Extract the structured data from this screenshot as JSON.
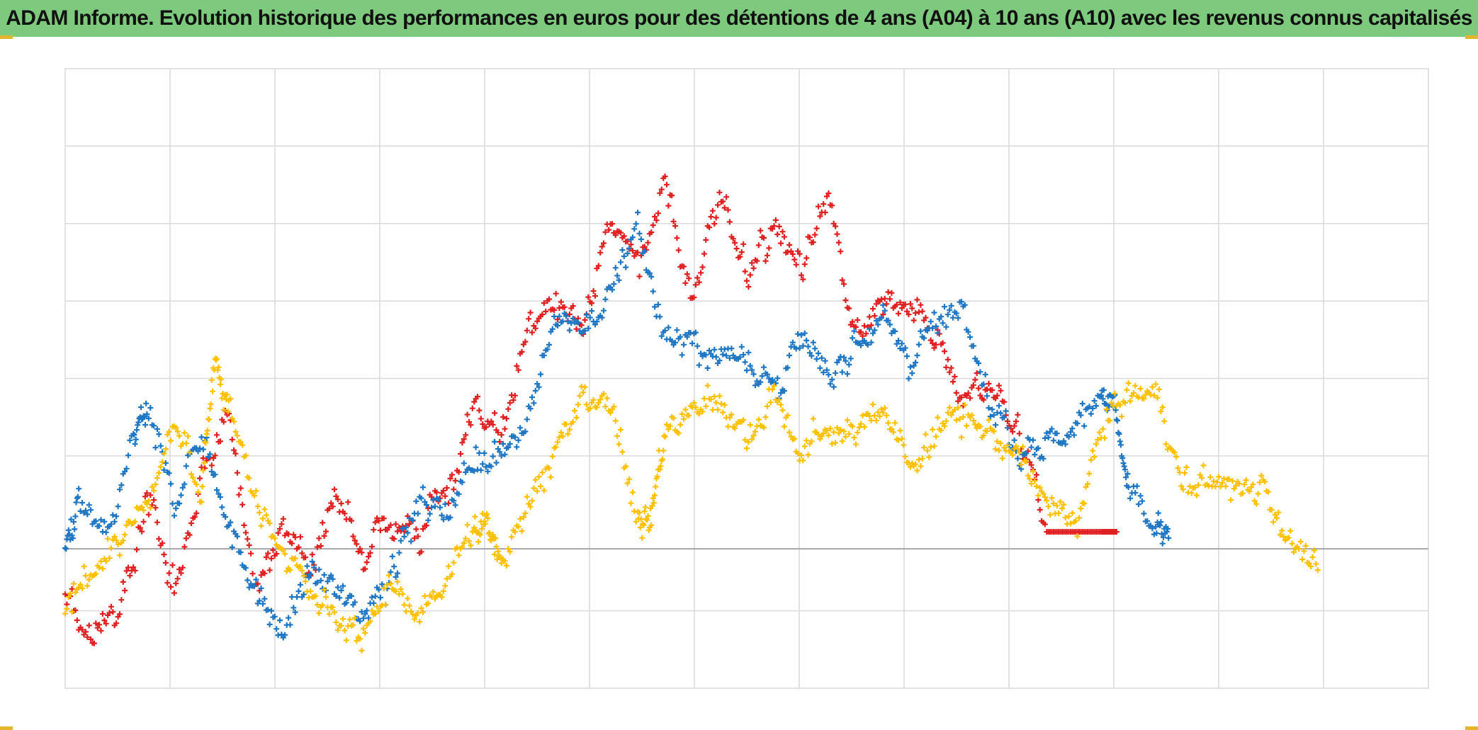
{
  "title": "ADAM Informe. Evolution historique des performances en euros pour des détentions de 4 ans (A04) à 10 ans (A10) avec les revenus connus capitalisés",
  "colors": {
    "title_background": "#7dc97d",
    "grid": "#d9d9d9",
    "zero_line": "#a6a6a6",
    "corner_marks": "#e3b52a"
  },
  "chart_data": {
    "type": "scatter",
    "marker": "plus",
    "title": "ADAM Informe. Evolution historique des performances en euros pour des détentions de 4 ans (A04) à 10 ans (A10) avec les revenus connus capitalisés",
    "xlabel": "",
    "ylabel": "",
    "grid": true,
    "legend": "none",
    "x_grid_divisions": 13,
    "ylim": [
      -0.9,
      3.1
    ],
    "y_gridlines": [
      -0.4,
      0.6,
      1.1,
      1.6,
      2.1,
      2.6
    ],
    "zero_line": 0,
    "points_per_anchor": 16,
    "series": [
      {
        "color": "#e02020",
        "x_anchors": [
          0,
          2,
          4,
          6,
          8,
          10,
          12,
          14,
          16,
          18,
          20,
          22,
          24,
          26,
          28,
          30,
          32,
          34,
          36,
          38,
          40,
          42,
          44,
          46,
          48,
          50,
          52,
          54,
          56,
          58,
          60,
          62,
          64,
          66,
          68,
          70,
          72,
          74,
          76,
          77.2
        ],
        "y_anchors": [
          -0.3,
          -0.6,
          -0.35,
          0.3,
          -0.25,
          0.5,
          0.85,
          -0.3,
          0.2,
          -0.1,
          0.3,
          -0.05,
          0.2,
          0.05,
          0.4,
          0.85,
          0.7,
          1.45,
          1.6,
          1.45,
          2.1,
          1.9,
          2.35,
          1.6,
          2.2,
          1.85,
          2.05,
          1.8,
          2.3,
          1.4,
          1.55,
          1.6,
          1.35,
          0.95,
          1.05,
          0.75,
          0.11,
          0.11,
          0.11,
          0.11
        ],
        "constant_after_x": 72,
        "constant_value": 0.11
      },
      {
        "color": "#1f77c4",
        "x_anchors": [
          0,
          1,
          3,
          5,
          6,
          8,
          10,
          12,
          14,
          16,
          18,
          20,
          22,
          24,
          26,
          28,
          30,
          32,
          34,
          36,
          38,
          40,
          42,
          44,
          46,
          48,
          50,
          52,
          54,
          56,
          58,
          60,
          62,
          64,
          66,
          68,
          70,
          72,
          74,
          76,
          77,
          78,
          80,
          81
        ],
        "y_anchors": [
          0,
          0.3,
          0,
          0.7,
          0.9,
          0.3,
          0.75,
          0.2,
          -0.3,
          -0.55,
          -0.15,
          -0.3,
          -0.4,
          -0.1,
          0.3,
          0.25,
          0.55,
          0.65,
          0.85,
          1.5,
          1.45,
          1.6,
          2.1,
          1.35,
          1.3,
          1.25,
          1.3,
          1.0,
          1.3,
          1.1,
          1.35,
          1.5,
          1.25,
          1.45,
          1.65,
          0.9,
          0.65,
          0.7,
          0.75,
          1.05,
          0.9,
          0.35,
          0.1,
          0.1
        ]
      },
      {
        "color": "#ffc000",
        "x_anchors": [
          0,
          2,
          4,
          6,
          8,
          10,
          11,
          12,
          14,
          16,
          18,
          20,
          22,
          24,
          26,
          28,
          30,
          31,
          32,
          34,
          36,
          38,
          40,
          42,
          43,
          44,
          46,
          48,
          50,
          52,
          54,
          56,
          58,
          60,
          62,
          64,
          66,
          68,
          70,
          72,
          74,
          76,
          78,
          80,
          82,
          84,
          86,
          88,
          90,
          92
        ],
        "y_anchors": [
          -0.45,
          -0.1,
          0.05,
          0.25,
          0.8,
          0.4,
          1.25,
          0.9,
          0.3,
          -0.05,
          -0.3,
          -0.45,
          -0.55,
          -0.25,
          -0.45,
          -0.15,
          0.1,
          0.15,
          -0.05,
          0.3,
          0.65,
          0.95,
          0.9,
          0.25,
          0.2,
          0.75,
          0.9,
          1.0,
          0.7,
          1.0,
          0.6,
          0.75,
          0.75,
          0.95,
          0.5,
          0.8,
          0.85,
          0.75,
          0.55,
          0.3,
          0.15,
          0.75,
          1.0,
          1.0,
          0.4,
          0.45,
          0.4,
          0.4,
          0.05,
          -0.2
        ]
      }
    ]
  }
}
